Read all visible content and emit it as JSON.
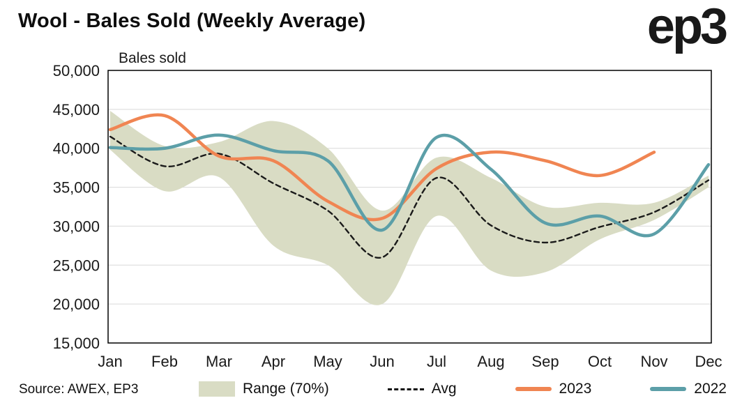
{
  "header": {
    "title": "Wool - Bales Sold (Weekly Average)",
    "logo": "ep3"
  },
  "axis_top_label": "Bales sold",
  "source": "Source: AWEX, EP3",
  "legend": [
    {
      "label": "Range (70%)",
      "swatch": "band",
      "color": "#d9dcc4"
    },
    {
      "label": "Avg",
      "swatch": "dashed",
      "color": "#1a1a1a"
    },
    {
      "label": "2023",
      "swatch": "line",
      "color": "#f08552"
    },
    {
      "label": "2022",
      "swatch": "line",
      "color": "#5c9fa8"
    }
  ],
  "chart_data": {
    "type": "line",
    "title": "Wool - Bales Sold (Weekly Average)",
    "ylabel": "Bales sold",
    "xlabel": "",
    "grid": true,
    "legend_position": "bottom",
    "categories": [
      "Jan",
      "Feb",
      "Mar",
      "Apr",
      "May",
      "Jun",
      "Jul",
      "Aug",
      "Sep",
      "Oct",
      "Nov",
      "Dec"
    ],
    "ylim": [
      15000,
      50000
    ],
    "ytick_step": 5000,
    "colors": {
      "band": "#d9dcc4",
      "avg": "#1a1a1a",
      "y2023": "#f08552",
      "y2022": "#5c9fa8",
      "grid": "#d9d9d9",
      "border": "#000000"
    },
    "band": {
      "name": "Range (70%)",
      "upper": [
        44800,
        40300,
        40800,
        43500,
        40000,
        32000,
        38800,
        36200,
        32500,
        33000,
        33000,
        36500
      ],
      "lower": [
        39800,
        34500,
        36300,
        27500,
        25000,
        20000,
        31300,
        24300,
        24100,
        28300,
        30800,
        35000
      ]
    },
    "series": [
      {
        "name": "Avg",
        "style": "dashed",
        "width": 2.4,
        "color": "#1a1a1a",
        "values": [
          41500,
          37700,
          39300,
          35500,
          32000,
          26000,
          36200,
          30100,
          27900,
          29900,
          31800,
          35900
        ]
      },
      {
        "name": "2023",
        "style": "solid",
        "width": 4.5,
        "color": "#f08552",
        "values": [
          42400,
          44200,
          39000,
          38400,
          33200,
          31000,
          37400,
          39500,
          38400,
          36500,
          39500,
          null
        ]
      },
      {
        "name": "2022",
        "style": "solid",
        "width": 4.5,
        "color": "#5c9fa8",
        "values": [
          40100,
          40000,
          41700,
          39700,
          38400,
          29500,
          41400,
          37300,
          30400,
          31300,
          29000,
          37900
        ]
      }
    ]
  }
}
